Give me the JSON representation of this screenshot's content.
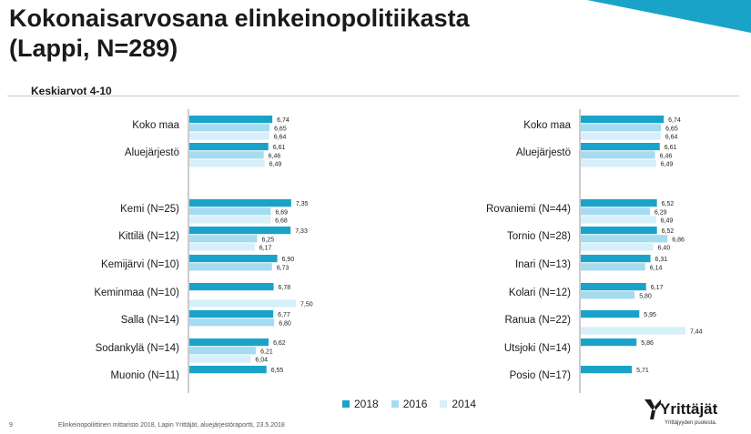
{
  "header": {
    "title": "Kokonaisarvosana elinkeinopolitiikasta\n(Lappi, N=289)",
    "subtitle": "Keskiarvot 4-10"
  },
  "colors": {
    "s2018": "#1aa3c9",
    "s2016": "#a5dbf0",
    "s2014": "#d6eff9",
    "accent": "#1aa3c9"
  },
  "legend": {
    "items": [
      {
        "label": "2018",
        "color": "#1aa3c9"
      },
      {
        "label": "2016",
        "color": "#a5dbf0"
      },
      {
        "label": "2014",
        "color": "#d6eff9"
      }
    ]
  },
  "footer": {
    "page": "9",
    "text": "Elinkeinopoliittinen mittaristo 2018, Lapin Yrittäjät, aluejärjestöraportti, 23.5.2018"
  },
  "logo": {
    "name": "Yrittäjät",
    "tagline": "Yrittäjyyden puolesta.",
    "icon": "yrittajat-logo-icon"
  },
  "chart_data": [
    {
      "type": "bar",
      "orientation": "horizontal",
      "series_names": [
        "2018",
        "2016",
        "2014"
      ],
      "groups": [
        {
          "label": "Koko maa",
          "values": [
            6.74,
            6.65,
            6.64
          ]
        },
        {
          "label": "Aluejärjestö",
          "values": [
            6.61,
            6.46,
            6.49
          ]
        },
        {
          "label": "",
          "values": [
            null,
            null,
            null
          ],
          "spacer": true
        },
        {
          "label": "Kemi (N=25)",
          "values": [
            7.35,
            6.69,
            6.68
          ]
        },
        {
          "label": "Kittilä (N=12)",
          "values": [
            7.33,
            6.25,
            6.17
          ]
        },
        {
          "label": "Kemijärvi (N=10)",
          "values": [
            6.9,
            6.73,
            null
          ]
        },
        {
          "label": "Keminmaa (N=10)",
          "values": [
            6.78,
            null,
            7.5
          ]
        },
        {
          "label": "Salla (N=14)",
          "values": [
            6.77,
            6.8,
            null
          ]
        },
        {
          "label": "Sodankylä (N=14)",
          "values": [
            6.62,
            6.21,
            6.04
          ]
        },
        {
          "label": "Muonio (N=11)",
          "values": [
            6.55,
            null,
            null
          ]
        }
      ],
      "value_labels": [
        [
          "6,74",
          "6,65",
          "6,64"
        ],
        [
          "6,61",
          "6,46",
          "6,49"
        ],
        [
          "",
          "",
          ""
        ],
        [
          "7,35",
          "6,69",
          "6,68"
        ],
        [
          "7,33",
          "6,25",
          "6,17"
        ],
        [
          "6,90",
          "6,73",
          ""
        ],
        [
          "6,78",
          "",
          "7,50"
        ],
        [
          "6,77",
          "6,80",
          ""
        ],
        [
          "6,62",
          "6,21",
          "6,04"
        ],
        [
          "6,55",
          "",
          ""
        ]
      ],
      "xlim": [
        4,
        10
      ],
      "grid": false
    },
    {
      "type": "bar",
      "orientation": "horizontal",
      "series_names": [
        "2018",
        "2016",
        "2014"
      ],
      "groups": [
        {
          "label": "Koko maa",
          "values": [
            6.74,
            6.65,
            6.64
          ]
        },
        {
          "label": "Aluejärjestö",
          "values": [
            6.61,
            6.46,
            6.49
          ]
        },
        {
          "label": "",
          "values": [
            null,
            null,
            null
          ],
          "spacer": true
        },
        {
          "label": "Rovaniemi (N=44)",
          "values": [
            6.52,
            6.29,
            6.49
          ]
        },
        {
          "label": "Tornio (N=28)",
          "values": [
            6.52,
            6.86,
            6.4
          ]
        },
        {
          "label": "Inari (N=13)",
          "values": [
            6.31,
            6.14,
            null
          ]
        },
        {
          "label": "Kolari (N=12)",
          "values": [
            6.17,
            5.8,
            null
          ]
        },
        {
          "label": "Ranua (N=22)",
          "values": [
            5.95,
            null,
            7.44
          ]
        },
        {
          "label": "Utsjoki (N=14)",
          "values": [
            5.86,
            null,
            null
          ]
        },
        {
          "label": "Posio (N=17)",
          "values": [
            5.71,
            null,
            null
          ]
        }
      ],
      "value_labels": [
        [
          "6,74",
          "6,65",
          "6,64"
        ],
        [
          "6,61",
          "6,46",
          "6,49"
        ],
        [
          "",
          "",
          ""
        ],
        [
          "6,52",
          "6,29",
          "6,49"
        ],
        [
          "6,52",
          "6,86",
          "6,40"
        ],
        [
          "6,31",
          "6,14",
          ""
        ],
        [
          "6,17",
          "5,80",
          ""
        ],
        [
          "5,95",
          "",
          "7,44"
        ],
        [
          "5,86",
          "",
          ""
        ],
        [
          "5,71",
          "",
          ""
        ]
      ],
      "xlim": [
        4,
        10
      ],
      "grid": false
    }
  ]
}
